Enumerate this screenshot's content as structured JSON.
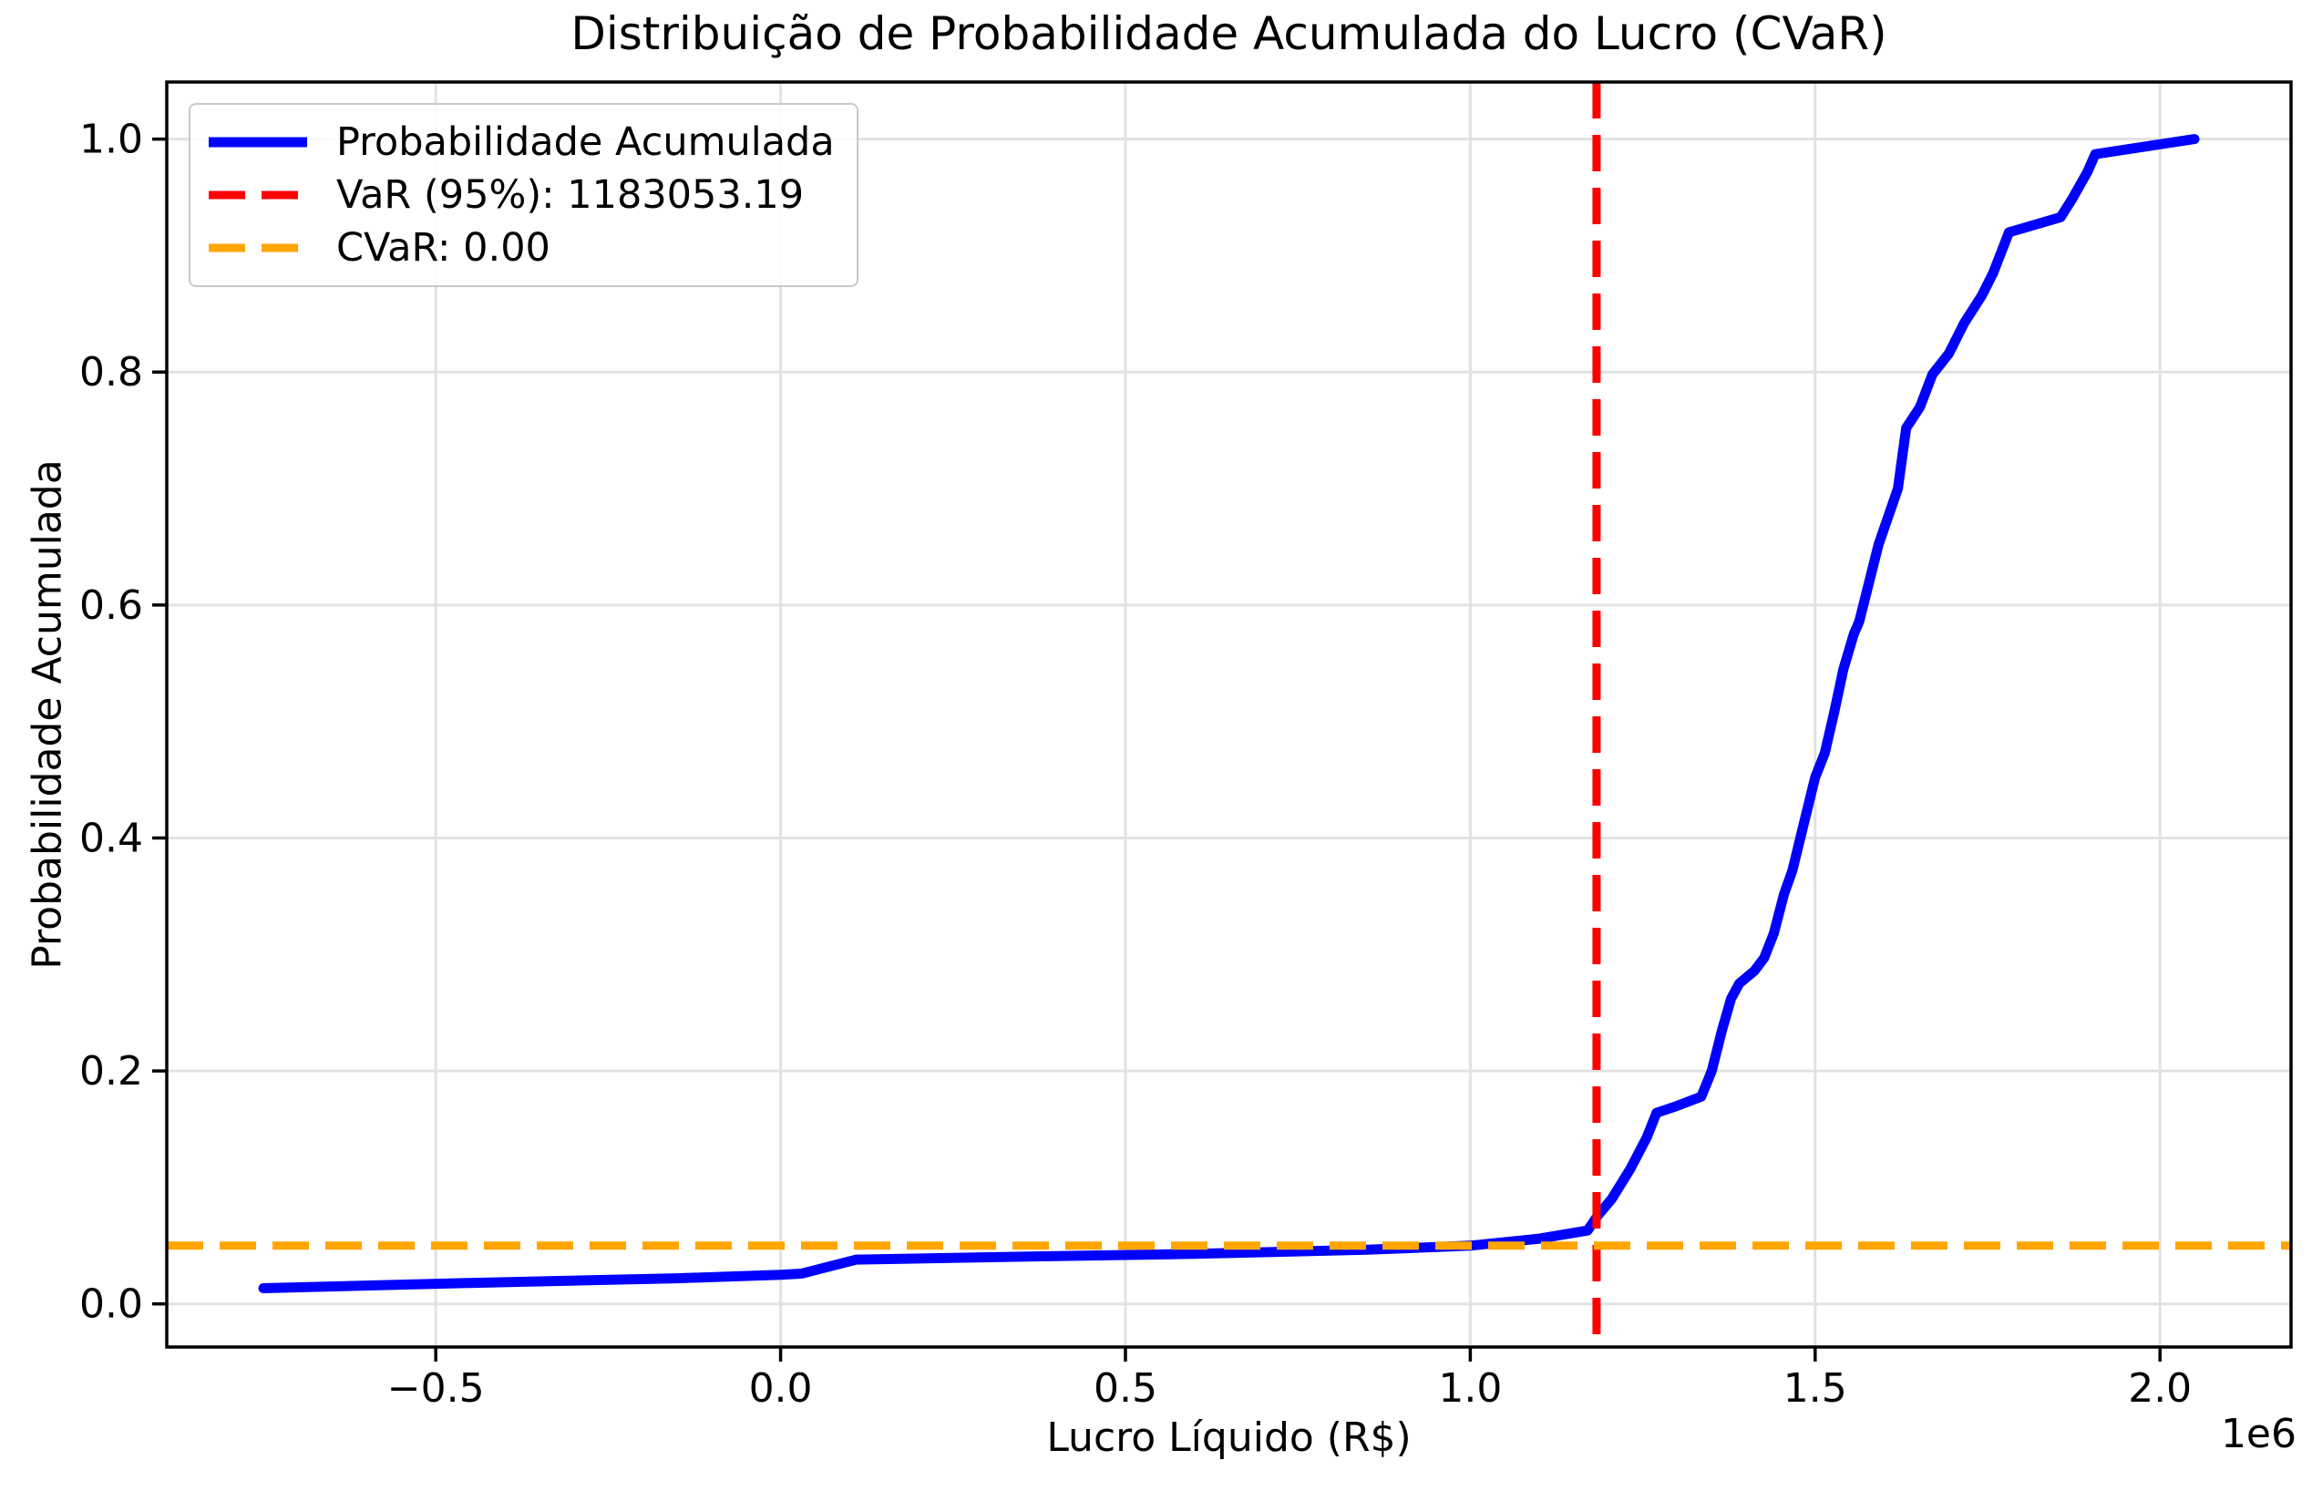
{
  "figure": {
    "background": "#ffffff"
  },
  "chart_data": {
    "type": "line",
    "title": "Distribuição de Probabilidade Acumulada do Lucro (CVaR)",
    "xlabel": "Lucro Líquido (R$)",
    "ylabel": "Probabilidade Acumulada",
    "x_offset_label": "1e6",
    "xlim": [
      -890000,
      2190000
    ],
    "ylim": [
      -0.037,
      1.049
    ],
    "grid": true,
    "x_ticks": [
      {
        "value": -500000,
        "label": "−0.5"
      },
      {
        "value": 0,
        "label": "0.0"
      },
      {
        "value": 500000,
        "label": "0.5"
      },
      {
        "value": 1000000,
        "label": "1.0"
      },
      {
        "value": 1500000,
        "label": "1.5"
      },
      {
        "value": 2000000,
        "label": "2.0"
      }
    ],
    "y_ticks": [
      {
        "value": 0.0,
        "label": "0.0"
      },
      {
        "value": 0.2,
        "label": "0.2"
      },
      {
        "value": 0.4,
        "label": "0.4"
      },
      {
        "value": 0.6,
        "label": "0.6"
      },
      {
        "value": 0.8,
        "label": "0.8"
      },
      {
        "value": 1.0,
        "label": "1.0"
      }
    ],
    "legend": {
      "position": "upper-left",
      "items": [
        {
          "label": "Probabilidade Acumulada",
          "color": "#0000ff",
          "dash": "solid"
        },
        {
          "label": "VaR (95%): 1183053.19",
          "color": "#ff0000",
          "dash": "dashed"
        },
        {
          "label": "CVaR: 0.00",
          "color": "#ffa500",
          "dash": "dashed"
        }
      ]
    },
    "series": [
      {
        "name": "Probabilidade Acumulada",
        "color": "#0000ff",
        "style": "solid",
        "line_width": 11,
        "points": [
          [
            -750000,
            0.0135
          ],
          [
            -450000,
            0.018
          ],
          [
            -150000,
            0.022
          ],
          [
            0,
            0.025
          ],
          [
            30000,
            0.026
          ],
          [
            110000,
            0.038
          ],
          [
            350000,
            0.0405
          ],
          [
            600000,
            0.043
          ],
          [
            850000,
            0.0465
          ],
          [
            1000000,
            0.05
          ],
          [
            1100000,
            0.056
          ],
          [
            1170000,
            0.063
          ],
          [
            1185000,
            0.076
          ],
          [
            1205000,
            0.09
          ],
          [
            1232000,
            0.116
          ],
          [
            1256000,
            0.143
          ],
          [
            1270000,
            0.164
          ],
          [
            1300000,
            0.17
          ],
          [
            1335000,
            0.178
          ],
          [
            1350000,
            0.2
          ],
          [
            1365000,
            0.235
          ],
          [
            1378000,
            0.262
          ],
          [
            1390000,
            0.275
          ],
          [
            1412000,
            0.286
          ],
          [
            1426000,
            0.297
          ],
          [
            1440000,
            0.318
          ],
          [
            1455000,
            0.352
          ],
          [
            1467000,
            0.372
          ],
          [
            1481000,
            0.406
          ],
          [
            1500000,
            0.452
          ],
          [
            1514000,
            0.473
          ],
          [
            1528000,
            0.509
          ],
          [
            1541000,
            0.545
          ],
          [
            1556000,
            0.575
          ],
          [
            1564000,
            0.586
          ],
          [
            1592000,
            0.652
          ],
          [
            1620000,
            0.7
          ],
          [
            1632000,
            0.752
          ],
          [
            1652000,
            0.77
          ],
          [
            1670000,
            0.798
          ],
          [
            1694000,
            0.816
          ],
          [
            1716000,
            0.842
          ],
          [
            1742000,
            0.866
          ],
          [
            1758000,
            0.885
          ],
          [
            1781000,
            0.92
          ],
          [
            1856000,
            0.933
          ],
          [
            1873000,
            0.949
          ],
          [
            1895000,
            0.972
          ],
          [
            1906000,
            0.987
          ],
          [
            2050000,
            1.0
          ]
        ]
      },
      {
        "name": "VaR (95%)",
        "color": "#ff0000",
        "style": "dashed",
        "orientation": "vertical",
        "value": 1183053.19,
        "line_width": 9
      },
      {
        "name": "CVaR",
        "color": "#ffa500",
        "style": "dashed",
        "orientation": "horizontal",
        "value": 0.05,
        "display_value": "0.00",
        "line_width": 9
      }
    ],
    "style": {
      "grid_color": "#e2e2e2",
      "spine_color": "#000000",
      "tick_color": "#000000",
      "tick_label_size": 44,
      "dash_pattern": "40 18"
    }
  }
}
